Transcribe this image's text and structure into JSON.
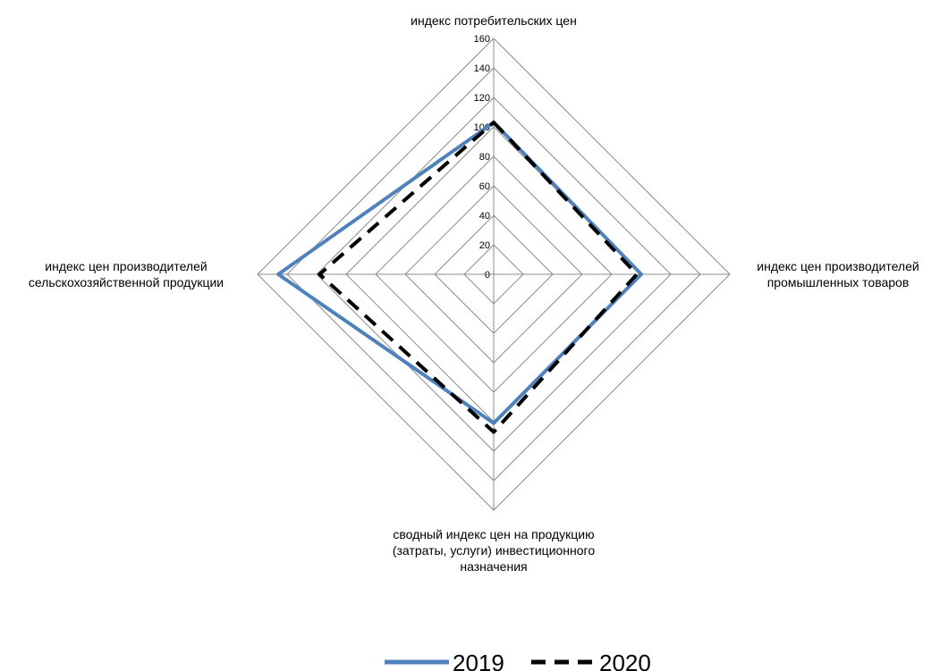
{
  "chart_data": {
    "type": "radar",
    "title": "",
    "categories": [
      [
        "индекс потребительских цен"
      ],
      [
        "индекс цен производителей",
        "промышленных товаров"
      ],
      [
        "сводный индекс цен на продукцию",
        "(затраты, услуги) инвестиционного",
        "назначения"
      ],
      [
        "индекс цен производителей",
        "сельскохозяйственной продукции"
      ]
    ],
    "r_axis": {
      "min": 0,
      "max": 160,
      "step": 20,
      "ticks": [
        "0",
        "20",
        "40",
        "60",
        "80",
        "100",
        "120",
        "140",
        "160"
      ]
    },
    "series": [
      {
        "name": "2019",
        "values": [
          103,
          100,
          101,
          146
        ],
        "color": "#4f81bd",
        "style": "solid"
      },
      {
        "name": "2020",
        "values": [
          103,
          97,
          107,
          118
        ],
        "color": "#000000",
        "style": "dashed"
      }
    ],
    "grid": true,
    "legend": "bottom"
  }
}
